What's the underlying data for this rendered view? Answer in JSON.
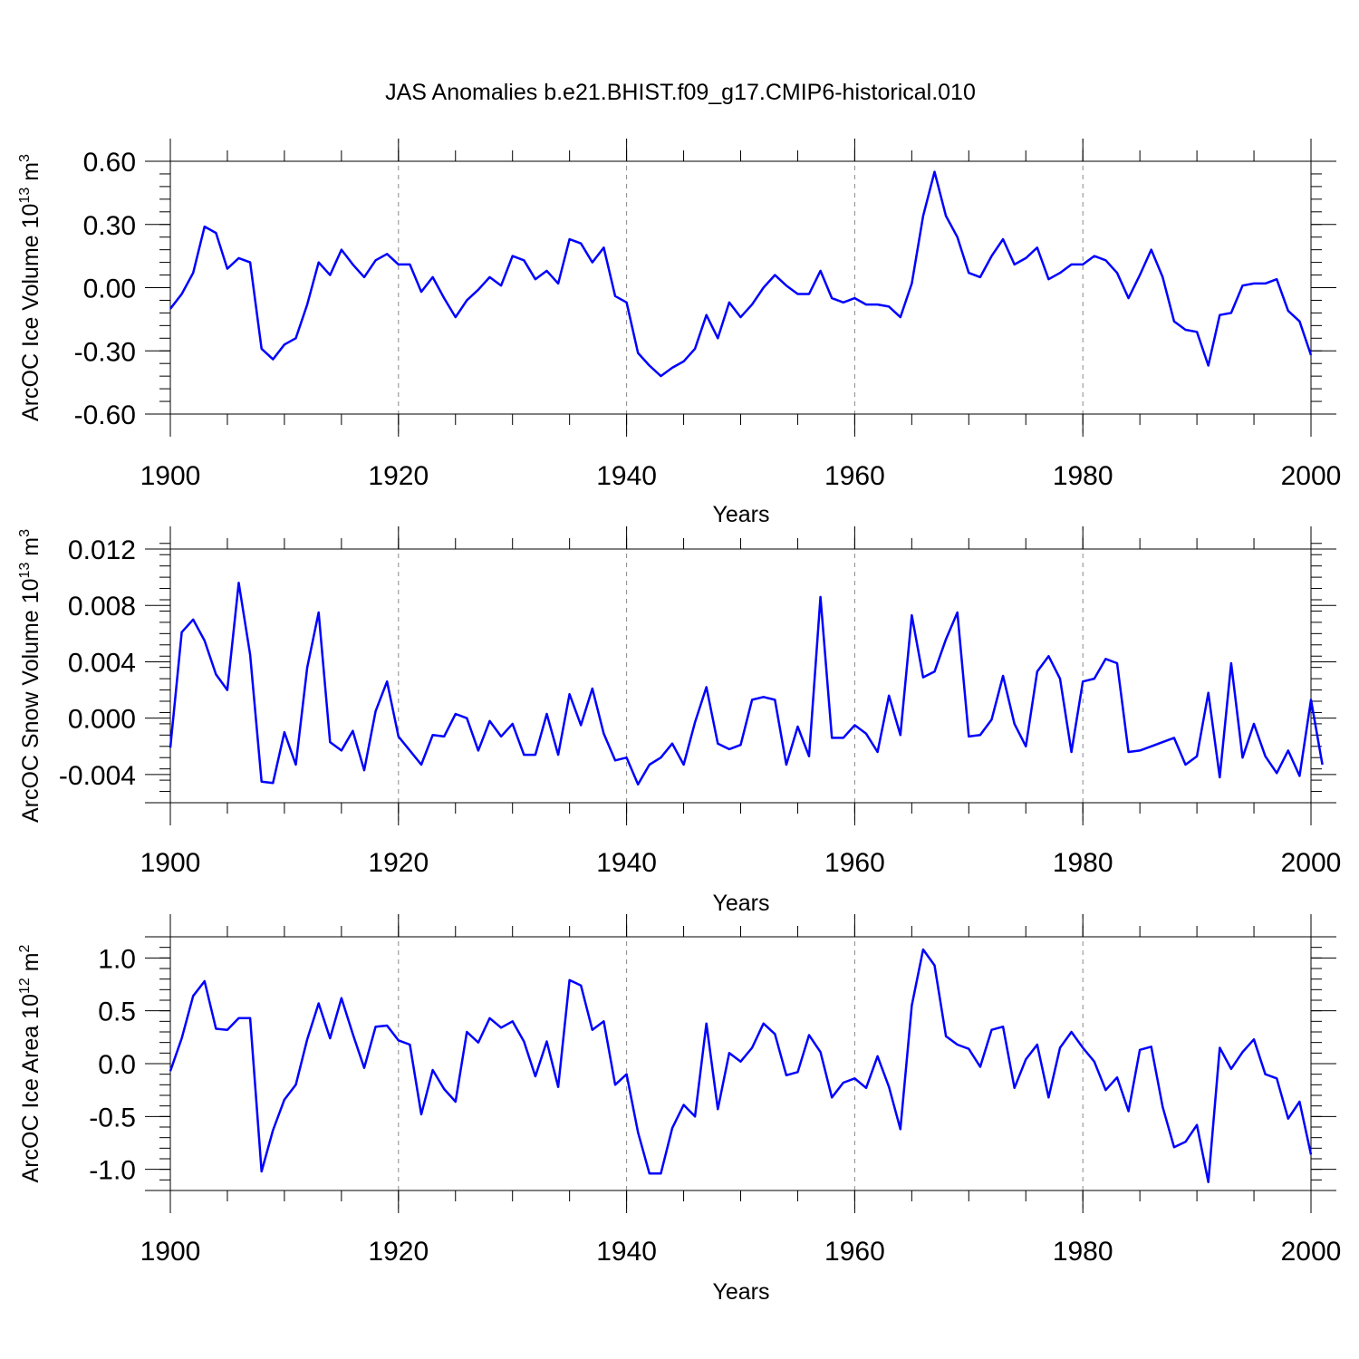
{
  "chart_data": {
    "type": "line",
    "title": "JAS Anomalies b.e21.BHIST.f09_g17.CMIP6-historical.010",
    "line_color": "#0000ff",
    "panels": [
      {
        "id": "ice-volume",
        "ylabel": "ArcOC Ice Volume 10",
        "ylabel_sup": "13",
        "ylabel_unit": " m",
        "ylabel_unit_sup": "3",
        "xlabel": "Years",
        "xlim": [
          1900,
          2000
        ],
        "ylim": [
          -0.6,
          0.6
        ],
        "frame_ylim": [
          -0.6,
          0.6
        ],
        "yticks": [
          -0.6,
          -0.3,
          0.0,
          0.3,
          0.6
        ],
        "yticklabels": [
          "-0.60",
          "-0.30",
          "0.00",
          "0.30",
          "0.60"
        ],
        "minor_ystep": 0.06,
        "xticks": [
          1900,
          1920,
          1940,
          1960,
          1980,
          2000
        ],
        "xticklabels": [
          "1900",
          "1920",
          "1940",
          "1960",
          "1980",
          "2000"
        ],
        "grid_x": [
          1920,
          1940,
          1960,
          1980
        ],
        "values": [
          -0.1,
          -0.03,
          0.07,
          0.29,
          0.26,
          0.09,
          0.14,
          0.12,
          -0.29,
          -0.34,
          -0.27,
          -0.24,
          -0.08,
          0.12,
          0.06,
          0.18,
          0.11,
          0.05,
          0.13,
          0.16,
          0.11,
          0.11,
          -0.02,
          0.05,
          -0.05,
          -0.14,
          -0.06,
          -0.01,
          0.05,
          0.01,
          0.15,
          0.13,
          0.04,
          0.08,
          0.02,
          0.23,
          0.21,
          0.12,
          0.19,
          -0.04,
          -0.07,
          -0.31,
          -0.37,
          -0.42,
          -0.38,
          -0.35,
          -0.29,
          -0.13,
          -0.24,
          -0.07,
          -0.14,
          -0.08,
          0.0,
          0.06,
          0.01,
          -0.03,
          -0.03,
          0.08,
          -0.05,
          -0.07,
          -0.05,
          -0.08,
          -0.08,
          -0.09,
          -0.14,
          0.02,
          0.34,
          0.55,
          0.34,
          0.24,
          0.07,
          0.05,
          0.15,
          0.23,
          0.11,
          0.14,
          0.19,
          0.04,
          0.07,
          0.11,
          0.11,
          0.15,
          0.13,
          0.07,
          -0.05,
          0.06,
          0.18,
          0.05,
          -0.16,
          -0.2,
          -0.21,
          -0.37,
          -0.13,
          -0.12,
          0.01,
          0.02,
          0.02,
          0.04,
          -0.11,
          -0.16,
          -0.32
        ]
      },
      {
        "id": "snow-volume",
        "ylabel": "ArcOC Snow Volume 10",
        "ylabel_sup": "13",
        "ylabel_unit": " m",
        "ylabel_unit_sup": "3",
        "xlabel": "Years",
        "xlim": [
          1900,
          2000
        ],
        "ylim": [
          -0.006,
          0.012
        ],
        "frame_ylim": [
          -0.006,
          0.012
        ],
        "yticks": [
          -0.004,
          0.0,
          0.004,
          0.008,
          0.012
        ],
        "yticklabels": [
          "-0.004",
          "0.000",
          "0.004",
          "0.008",
          "0.012"
        ],
        "minor_ystep": 0.0008,
        "xticks": [
          1900,
          1920,
          1940,
          1960,
          1980,
          2000
        ],
        "xticklabels": [
          "1900",
          "1920",
          "1940",
          "1960",
          "1980",
          "2000"
        ],
        "grid_x": [
          1920,
          1940,
          1960,
          1980
        ],
        "values": [
          -0.0021,
          0.0061,
          0.007,
          0.0055,
          0.0031,
          0.002,
          0.0096,
          0.0045,
          -0.0045,
          -0.0046,
          -0.001,
          -0.0033,
          0.0036,
          0.0075,
          -0.0017,
          -0.0023,
          -0.0009,
          -0.0037,
          0.0005,
          0.0026,
          -0.0013,
          -0.0023,
          -0.0033,
          -0.0012,
          -0.0013,
          0.0003,
          0.0,
          -0.0023,
          -0.0002,
          -0.0013,
          -0.0004,
          -0.0026,
          -0.0026,
          0.0003,
          -0.0026,
          0.0017,
          -0.0005,
          0.0021,
          -0.0011,
          -0.003,
          -0.0028,
          -0.0047,
          -0.0033,
          -0.0028,
          -0.0018,
          -0.0033,
          -0.0003,
          0.0022,
          -0.0018,
          -0.0022,
          -0.0019,
          0.0013,
          0.0015,
          0.0013,
          -0.0033,
          -0.0006,
          -0.0027,
          0.0086,
          -0.0014,
          -0.0014,
          -0.0005,
          -0.0011,
          -0.0024,
          0.0016,
          -0.0012,
          0.0073,
          0.0029,
          0.0033,
          0.0056,
          0.0075,
          -0.0013,
          -0.0012,
          -0.0001,
          0.003,
          -0.0004,
          -0.002,
          0.0033,
          0.0044,
          0.0028,
          -0.0024,
          0.0026,
          0.0028,
          0.0042,
          0.0039,
          -0.0024,
          -0.0023,
          -0.002,
          -0.0017,
          -0.0014,
          -0.0033,
          -0.0027,
          0.0018,
          -0.0042,
          0.0039,
          -0.0028,
          -0.0004,
          -0.0027,
          -0.0039,
          -0.0023,
          -0.0041,
          0.0013,
          -0.0033
        ]
      },
      {
        "id": "ice-area",
        "ylabel": "ArcOC Ice Area 10",
        "ylabel_sup": "12",
        "ylabel_unit": " m",
        "ylabel_unit_sup": "2",
        "xlabel": "Years",
        "xlim": [
          1900,
          2000
        ],
        "ylim": [
          -1.2,
          1.2
        ],
        "frame_ylim": [
          -1.2,
          1.2
        ],
        "yticks": [
          -1.0,
          -0.5,
          0.0,
          0.5,
          1.0
        ],
        "yticklabels": [
          "-1.0",
          "-0.5",
          "0.0",
          "0.5",
          "1.0"
        ],
        "minor_ystep": 0.1,
        "xticks": [
          1900,
          1920,
          1940,
          1960,
          1980,
          2000
        ],
        "xticklabels": [
          "1900",
          "1920",
          "1940",
          "1960",
          "1980",
          "2000"
        ],
        "grid_x": [
          1920,
          1940,
          1960,
          1980
        ],
        "values": [
          -0.07,
          0.24,
          0.64,
          0.78,
          0.33,
          0.32,
          0.43,
          0.43,
          -1.02,
          -0.63,
          -0.34,
          -0.2,
          0.23,
          0.57,
          0.24,
          0.62,
          0.28,
          -0.04,
          0.35,
          0.36,
          0.22,
          0.18,
          -0.48,
          -0.06,
          -0.24,
          -0.36,
          0.3,
          0.2,
          0.43,
          0.34,
          0.4,
          0.21,
          -0.12,
          0.21,
          -0.22,
          0.79,
          0.74,
          0.32,
          0.4,
          -0.2,
          -0.1,
          -0.65,
          -1.04,
          -1.04,
          -0.61,
          -0.39,
          -0.5,
          0.38,
          -0.43,
          0.1,
          0.02,
          0.15,
          0.38,
          0.28,
          -0.11,
          -0.08,
          0.27,
          0.11,
          -0.32,
          -0.18,
          -0.14,
          -0.23,
          0.07,
          -0.22,
          -0.62,
          0.55,
          1.08,
          0.93,
          0.26,
          0.18,
          0.14,
          -0.03,
          0.32,
          0.35,
          -0.23,
          0.04,
          0.18,
          -0.32,
          0.15,
          0.3,
          0.15,
          0.02,
          -0.25,
          -0.13,
          -0.45,
          0.13,
          0.16,
          -0.41,
          -0.79,
          -0.74,
          -0.58,
          -1.12,
          0.15,
          -0.05,
          0.11,
          0.23,
          -0.1,
          -0.14,
          -0.52,
          -0.36,
          -0.86
        ]
      }
    ]
  }
}
